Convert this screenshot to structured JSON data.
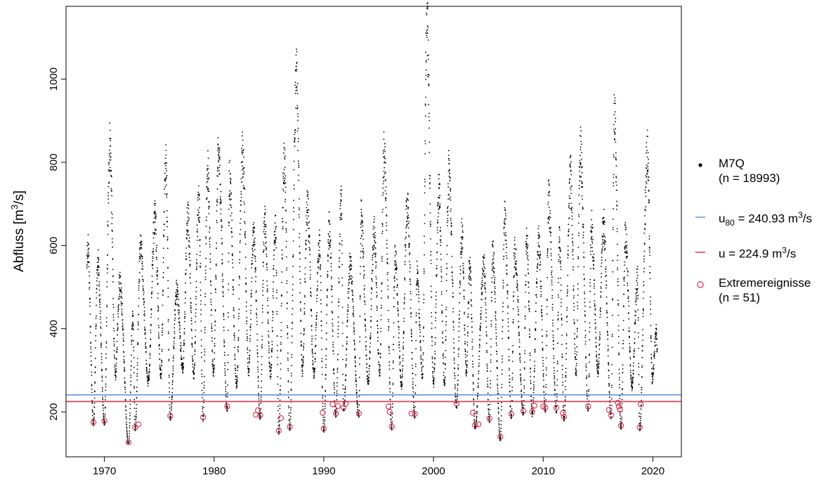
{
  "chart_data": {
    "type": "scatter",
    "title": "",
    "xlabel": "",
    "ylabel": "Abfluss [m",
    "ylabel_sup": "3",
    "ylabel_end": "/s]",
    "xlim": [
      1966.5,
      2022.6
    ],
    "ylim": [
      92,
      1175
    ],
    "x_ticks": [
      1970,
      1980,
      1990,
      2000,
      2010,
      2020
    ],
    "y_ticks": [
      200,
      400,
      600,
      800,
      1000
    ],
    "thresholds": [
      {
        "label_main": "u",
        "label_sub": "80",
        "label_value": " = 240.93 m",
        "label_sup": "3",
        "label_end": "/s",
        "value": 240.93,
        "color": "#6b9ee0"
      },
      {
        "label_main": "u",
        "label_sub": "",
        "label_value": " = 224.9 m",
        "label_sup": "3",
        "label_end": "/s",
        "value": 224.9,
        "color": "#e0405a"
      }
    ],
    "series_main": {
      "name_line1": "M7Q",
      "name_line2": "(n = 18993)",
      "color": "#000000",
      "n": 18993,
      "x_start": 1968.4,
      "x_end": 2020.4,
      "seasonal_peaks": [
        [
          1968.5,
          590
        ],
        [
          1969.4,
          560
        ],
        [
          1970.5,
          845
        ],
        [
          1971.4,
          515
        ],
        [
          1972.6,
          430
        ],
        [
          1973.3,
          590
        ],
        [
          1974.6,
          675
        ],
        [
          1975.6,
          812
        ],
        [
          1976.6,
          490
        ],
        [
          1977.6,
          665
        ],
        [
          1978.6,
          715
        ],
        [
          1979.4,
          780
        ],
        [
          1980.4,
          812
        ],
        [
          1981.4,
          760
        ],
        [
          1982.6,
          820
        ],
        [
          1983.6,
          630
        ],
        [
          1984.6,
          660
        ],
        [
          1985.6,
          650
        ],
        [
          1986.4,
          802
        ],
        [
          1987.5,
          1003
        ],
        [
          1988.5,
          690
        ],
        [
          1989.6,
          600
        ],
        [
          1990.5,
          640
        ],
        [
          1991.6,
          715
        ],
        [
          1992.4,
          550
        ],
        [
          1993.4,
          670
        ],
        [
          1994.6,
          630
        ],
        [
          1995.5,
          818
        ],
        [
          1996.5,
          570
        ],
        [
          1997.6,
          695
        ],
        [
          1998.5,
          530
        ],
        [
          1999.4,
          1148
        ],
        [
          2000.5,
          730
        ],
        [
          2001.4,
          778
        ],
        [
          2002.6,
          630
        ],
        [
          2003.3,
          550
        ],
        [
          2004.6,
          555
        ],
        [
          2005.4,
          580
        ],
        [
          2006.5,
          665
        ],
        [
          2007.4,
          585
        ],
        [
          2008.5,
          622
        ],
        [
          2009.6,
          610
        ],
        [
          2010.5,
          710
        ],
        [
          2011.5,
          615
        ],
        [
          2012.5,
          768
        ],
        [
          2013.4,
          826
        ],
        [
          2014.4,
          645
        ],
        [
          2015.5,
          650
        ],
        [
          2016.5,
          912
        ],
        [
          2017.5,
          620
        ],
        [
          2018.6,
          525
        ],
        [
          2019.5,
          822
        ],
        [
          2020.3,
          390
        ]
      ]
    },
    "series_extremes": {
      "name_line1": "Extremereignisse",
      "name_line2": "(n = 51)",
      "color": "#dc3a55",
      "n": 51,
      "points": [
        [
          1969.0,
          175
        ],
        [
          1970.0,
          178
        ],
        [
          1972.2,
          127
        ],
        [
          1972.8,
          163
        ],
        [
          1973.1,
          170
        ],
        [
          1976.0,
          190
        ],
        [
          1979.0,
          187
        ],
        [
          1981.2,
          213
        ],
        [
          1983.8,
          193
        ],
        [
          1984.0,
          204
        ],
        [
          1984.2,
          192
        ],
        [
          1985.9,
          155
        ],
        [
          1986.1,
          185
        ],
        [
          1986.9,
          164
        ],
        [
          1989.9,
          198
        ],
        [
          1990.0,
          160
        ],
        [
          1990.8,
          218
        ],
        [
          1991.1,
          196
        ],
        [
          1991.3,
          214
        ],
        [
          1991.8,
          210
        ],
        [
          1992.0,
          220
        ],
        [
          1993.2,
          196
        ],
        [
          1995.9,
          213
        ],
        [
          1996.0,
          200
        ],
        [
          1996.2,
          165
        ],
        [
          1998.0,
          196
        ],
        [
          1998.3,
          195
        ],
        [
          2002.1,
          220
        ],
        [
          2003.6,
          198
        ],
        [
          2003.8,
          168
        ],
        [
          2004.1,
          170
        ],
        [
          2005.1,
          184
        ],
        [
          2006.1,
          140
        ],
        [
          2007.1,
          195
        ],
        [
          2008.2,
          202
        ],
        [
          2009.0,
          200
        ],
        [
          2009.2,
          215
        ],
        [
          2010.0,
          213
        ],
        [
          2010.2,
          210
        ],
        [
          2011.2,
          210
        ],
        [
          2011.8,
          197
        ],
        [
          2011.9,
          188
        ],
        [
          2014.1,
          213
        ],
        [
          2016.0,
          205
        ],
        [
          2016.2,
          192
        ],
        [
          2016.8,
          222
        ],
        [
          2016.9,
          213
        ],
        [
          2017.0,
          205
        ],
        [
          2017.1,
          167
        ],
        [
          2018.8,
          163
        ],
        [
          2018.9,
          218
        ]
      ]
    },
    "legend_position": "right"
  }
}
